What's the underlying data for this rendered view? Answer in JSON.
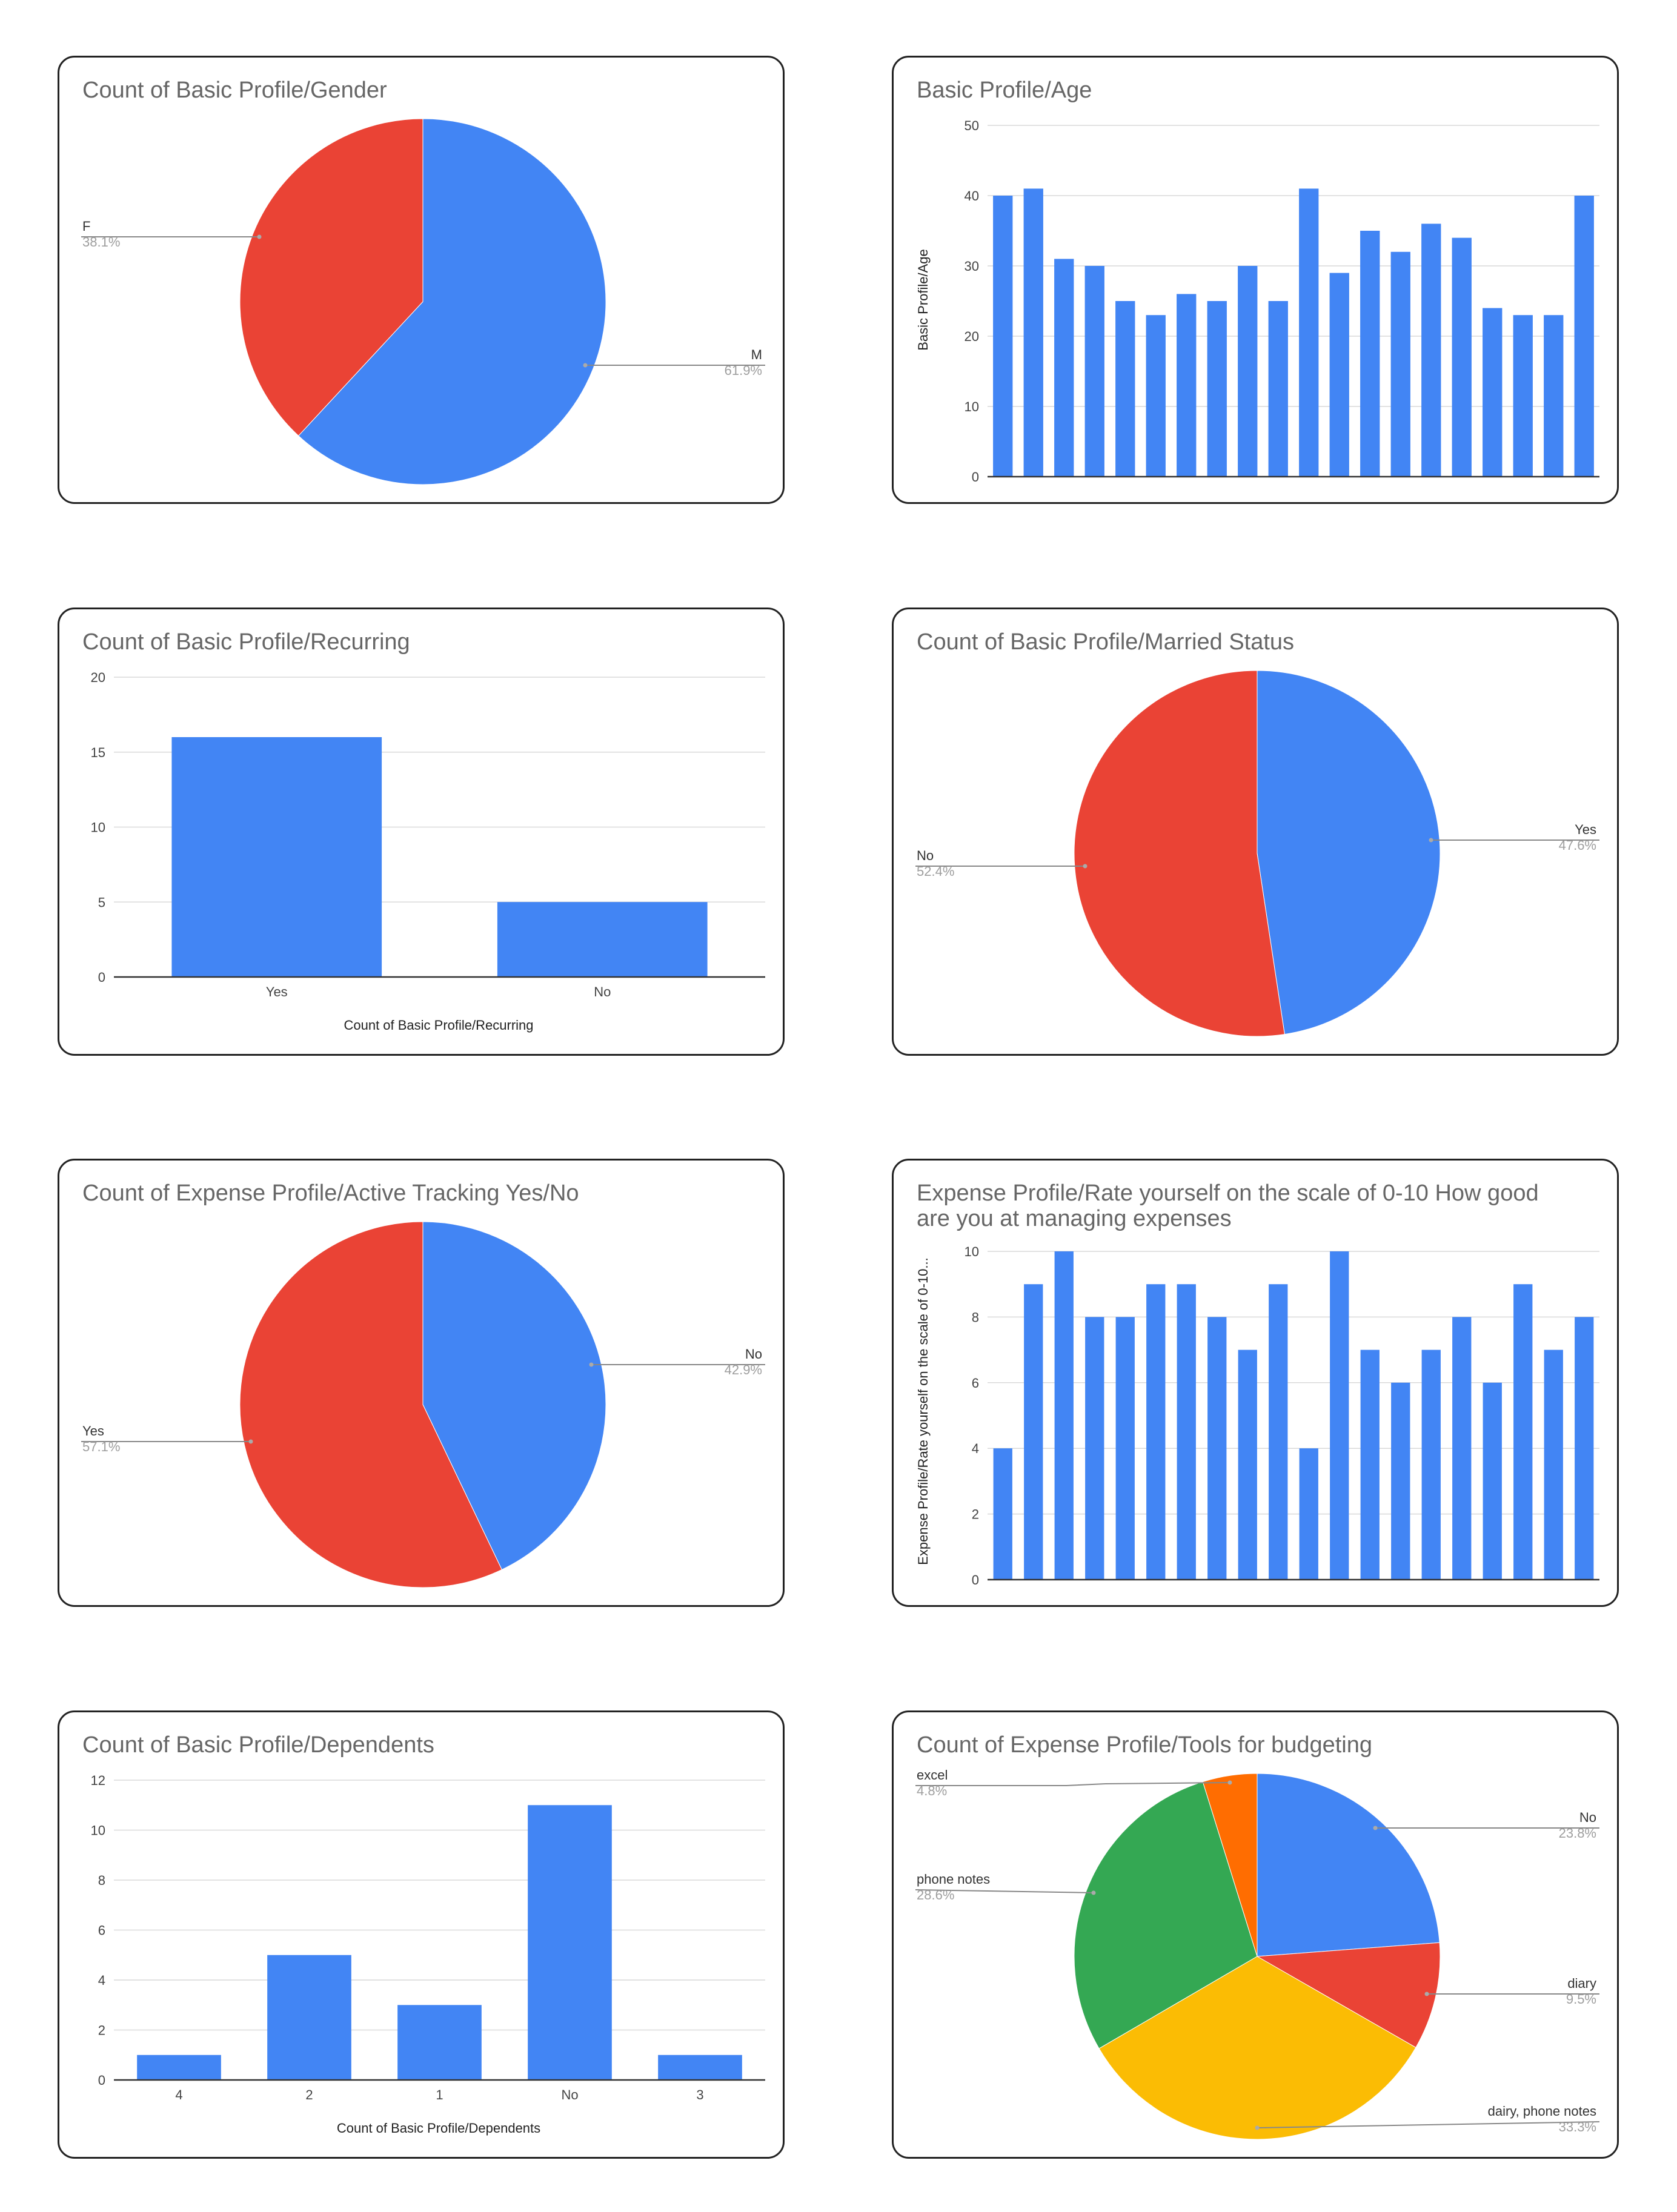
{
  "colors": {
    "blue": "#4285f4",
    "red": "#ea4335",
    "yellow": "#fbbc04",
    "green": "#34a853",
    "orange": "#ff6d01",
    "grid": "#d9d9d9",
    "axis": "#333333"
  },
  "chart_data": [
    {
      "id": "gender",
      "type": "pie",
      "title": "Count of Basic Profile/Gender",
      "slices": [
        {
          "label": "M",
          "value": 61.9,
          "pct_label": "61.9%",
          "color": "#4285f4"
        },
        {
          "label": "F",
          "value": 38.1,
          "pct_label": "38.1%",
          "color": "#ea4335"
        }
      ],
      "legend": "callout"
    },
    {
      "id": "age",
      "type": "bar",
      "title": "Basic Profile/Age",
      "ylabel": "Basic Profile/Age",
      "xlabel": "",
      "ylim": [
        0,
        50
      ],
      "yticks": [
        0,
        10,
        20,
        30,
        40,
        50
      ],
      "values": [
        40,
        41,
        31,
        30,
        25,
        23,
        26,
        25,
        30,
        25,
        41,
        29,
        35,
        32,
        36,
        34,
        24,
        23,
        23,
        40
      ],
      "grid": true
    },
    {
      "id": "recurring",
      "type": "bar",
      "title": "Count of Basic Profile/Recurring",
      "xlabel": "Count of Basic Profile/Recurring",
      "ylabel": "",
      "ylim": [
        0,
        20
      ],
      "yticks": [
        0,
        5,
        10,
        15,
        20
      ],
      "categories": [
        "Yes",
        "No"
      ],
      "values": [
        16,
        5
      ],
      "grid": true
    },
    {
      "id": "married",
      "type": "pie",
      "title": "Count of Basic Profile/Married Status",
      "slices": [
        {
          "label": "Yes",
          "value": 47.6,
          "pct_label": "47.6%",
          "color": "#4285f4"
        },
        {
          "label": "No",
          "value": 52.4,
          "pct_label": "52.4%",
          "color": "#ea4335"
        }
      ],
      "legend": "callout"
    },
    {
      "id": "tracking",
      "type": "pie",
      "title": "Count of Expense Profile/Active Tracking Yes/No",
      "slices": [
        {
          "label": "No",
          "value": 42.9,
          "pct_label": "42.9%",
          "color": "#4285f4"
        },
        {
          "label": "Yes",
          "value": 57.1,
          "pct_label": "57.1%",
          "color": "#ea4335"
        }
      ],
      "legend": "callout"
    },
    {
      "id": "rating",
      "type": "bar",
      "title_lines": [
        "Expense Profile/Rate yourself on the scale of 0-10 How good",
        "are you at managing expenses"
      ],
      "ylabel": "Expense Profile/Rate yourself on the scale of 0-10...",
      "xlabel": "",
      "ylim": [
        0,
        10
      ],
      "yticks": [
        0,
        2,
        4,
        6,
        8,
        10
      ],
      "values": [
        4,
        9,
        10,
        8,
        8,
        9,
        9,
        8,
        7,
        9,
        4,
        10,
        7,
        6,
        7,
        8,
        6,
        9,
        7,
        8
      ],
      "grid": true
    },
    {
      "id": "dependents",
      "type": "bar",
      "title": "Count of Basic Profile/Dependents",
      "xlabel": "Count of Basic Profile/Dependents",
      "ylabel": "",
      "ylim": [
        0,
        12
      ],
      "yticks": [
        0,
        2,
        4,
        6,
        8,
        10,
        12
      ],
      "categories": [
        "4",
        "2",
        "1",
        "No",
        "3"
      ],
      "values": [
        1,
        5,
        3,
        11,
        1
      ],
      "grid": true
    },
    {
      "id": "tools",
      "type": "pie",
      "title": "Count of Expense Profile/Tools for budgeting",
      "slices": [
        {
          "label": "No",
          "value": 23.8,
          "pct_label": "23.8%",
          "color": "#4285f4"
        },
        {
          "label": "diary",
          "value": 9.5,
          "pct_label": "9.5%",
          "color": "#ea4335"
        },
        {
          "label": "dairy, phone notes",
          "value": 33.3,
          "pct_label": "33.3%",
          "color": "#fbbc04"
        },
        {
          "label": "phone notes",
          "value": 28.6,
          "pct_label": "28.6%",
          "color": "#34a853"
        },
        {
          "label": "excel",
          "value": 4.8,
          "pct_label": "4.8%",
          "color": "#ff6d01"
        }
      ],
      "legend": "callout"
    }
  ]
}
